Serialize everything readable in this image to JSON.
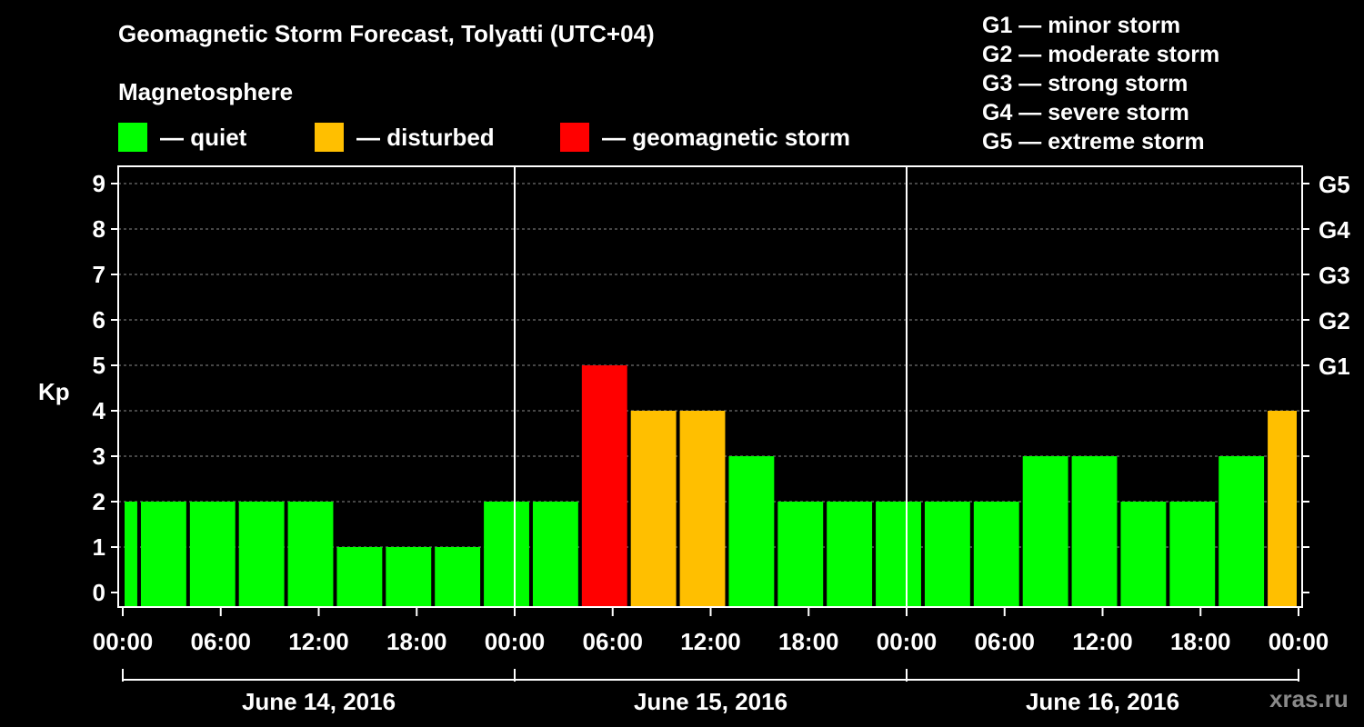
{
  "header": {
    "title": "Geomagnetic Storm Forecast, Tolyatti (UTC+04)",
    "magnetosphere_label": "Magnetosphere"
  },
  "legend": {
    "quiet": {
      "label": "— quiet",
      "color": "#00ff00"
    },
    "disturbed": {
      "label": "— disturbed",
      "color": "#ffbf00"
    },
    "storm": {
      "label": "— geomagnetic storm",
      "color": "#ff0000"
    }
  },
  "storm_levels": [
    "G1 — minor storm",
    "G2 — moderate storm",
    "G3 — strong storm",
    "G4 — severe storm",
    "G5 — extreme storm"
  ],
  "watermark": "xras.ru",
  "chart_data": {
    "type": "bar",
    "title": "Geomagnetic Storm Forecast, Tolyatti (UTC+04)",
    "ylabel": "Kp",
    "ylim": [
      0,
      9
    ],
    "y_ticks": [
      0,
      1,
      2,
      3,
      4,
      5,
      6,
      7,
      8,
      9
    ],
    "right_ticks": [
      {
        "kp": 5,
        "label": "G1"
      },
      {
        "kp": 6,
        "label": "G2"
      },
      {
        "kp": 7,
        "label": "G3"
      },
      {
        "kp": 8,
        "label": "G4"
      },
      {
        "kp": 9,
        "label": "G5"
      }
    ],
    "x_tick_labels": [
      "00:00",
      "06:00",
      "12:00",
      "18:00",
      "00:00",
      "06:00",
      "12:00",
      "18:00",
      "00:00",
      "06:00",
      "12:00",
      "18:00",
      "00:00"
    ],
    "x_tick_hours": [
      0,
      6,
      12,
      18,
      24,
      30,
      36,
      42,
      48,
      54,
      60,
      66,
      72
    ],
    "days": [
      {
        "label": "June 14, 2016",
        "start_hour": 0,
        "end_hour": 24
      },
      {
        "label": "June 15, 2016",
        "start_hour": 24,
        "end_hour": 48
      },
      {
        "label": "June 16, 2016",
        "start_hour": 48,
        "end_hour": 72
      }
    ],
    "day_separators_hours": [
      24,
      48
    ],
    "grid": "horizontal dashed",
    "bars": [
      {
        "start_hour": 0,
        "end_hour": 1,
        "kp": 2,
        "level": "quiet"
      },
      {
        "start_hour": 1,
        "end_hour": 4,
        "kp": 2,
        "level": "quiet"
      },
      {
        "start_hour": 4,
        "end_hour": 7,
        "kp": 2,
        "level": "quiet"
      },
      {
        "start_hour": 7,
        "end_hour": 10,
        "kp": 2,
        "level": "quiet"
      },
      {
        "start_hour": 10,
        "end_hour": 13,
        "kp": 2,
        "level": "quiet"
      },
      {
        "start_hour": 13,
        "end_hour": 16,
        "kp": 1,
        "level": "quiet"
      },
      {
        "start_hour": 16,
        "end_hour": 19,
        "kp": 1,
        "level": "quiet"
      },
      {
        "start_hour": 19,
        "end_hour": 22,
        "kp": 1,
        "level": "quiet"
      },
      {
        "start_hour": 22,
        "end_hour": 25,
        "kp": 2,
        "level": "quiet"
      },
      {
        "start_hour": 25,
        "end_hour": 28,
        "kp": 2,
        "level": "quiet"
      },
      {
        "start_hour": 28,
        "end_hour": 31,
        "kp": 5,
        "level": "storm"
      },
      {
        "start_hour": 31,
        "end_hour": 34,
        "kp": 4,
        "level": "disturbed"
      },
      {
        "start_hour": 34,
        "end_hour": 37,
        "kp": 4,
        "level": "disturbed"
      },
      {
        "start_hour": 37,
        "end_hour": 40,
        "kp": 3,
        "level": "quiet"
      },
      {
        "start_hour": 40,
        "end_hour": 43,
        "kp": 2,
        "level": "quiet"
      },
      {
        "start_hour": 43,
        "end_hour": 46,
        "kp": 2,
        "level": "quiet"
      },
      {
        "start_hour": 46,
        "end_hour": 49,
        "kp": 2,
        "level": "quiet"
      },
      {
        "start_hour": 49,
        "end_hour": 52,
        "kp": 2,
        "level": "quiet"
      },
      {
        "start_hour": 52,
        "end_hour": 55,
        "kp": 2,
        "level": "quiet"
      },
      {
        "start_hour": 55,
        "end_hour": 58,
        "kp": 3,
        "level": "quiet"
      },
      {
        "start_hour": 58,
        "end_hour": 61,
        "kp": 3,
        "level": "quiet"
      },
      {
        "start_hour": 61,
        "end_hour": 64,
        "kp": 2,
        "level": "quiet"
      },
      {
        "start_hour": 64,
        "end_hour": 67,
        "kp": 2,
        "level": "quiet"
      },
      {
        "start_hour": 67,
        "end_hour": 70,
        "kp": 3,
        "level": "quiet"
      },
      {
        "start_hour": 70,
        "end_hour": 72,
        "kp": 4,
        "level": "disturbed"
      }
    ]
  }
}
